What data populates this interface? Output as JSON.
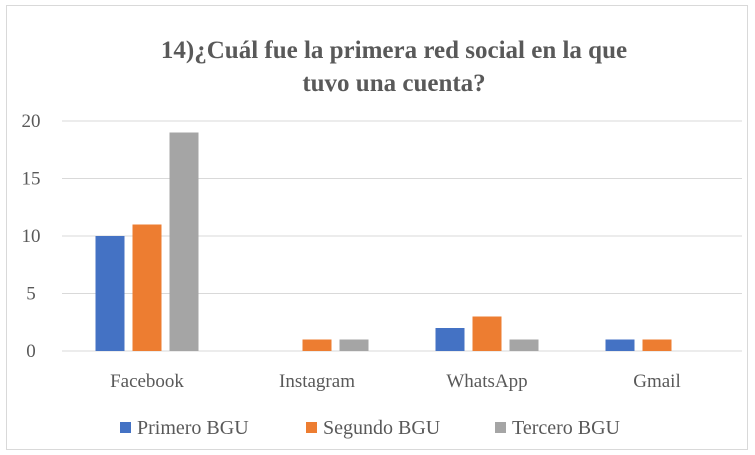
{
  "chart_data": {
    "type": "bar",
    "title_lines": [
      "14)¿Cuál fue la primera  red social en la que",
      "tuvo una cuenta?"
    ],
    "categories": [
      "Facebook",
      "Instagram",
      "WhatsApp",
      "Gmail"
    ],
    "series": [
      {
        "name": "Primero BGU",
        "color": "#4472c4",
        "values": [
          10,
          0,
          2,
          1
        ]
      },
      {
        "name": "Segundo BGU",
        "color": "#ed7d31",
        "values": [
          11,
          1,
          3,
          1
        ]
      },
      {
        "name": "Tercero BGU",
        "color": "#a5a5a5",
        "values": [
          19,
          1,
          1,
          0
        ]
      }
    ],
    "yticks": [
      "0",
      "5",
      "10",
      "15",
      "20"
    ],
    "ylim": [
      0,
      20
    ],
    "grid": true,
    "legend_position": "bottom"
  }
}
